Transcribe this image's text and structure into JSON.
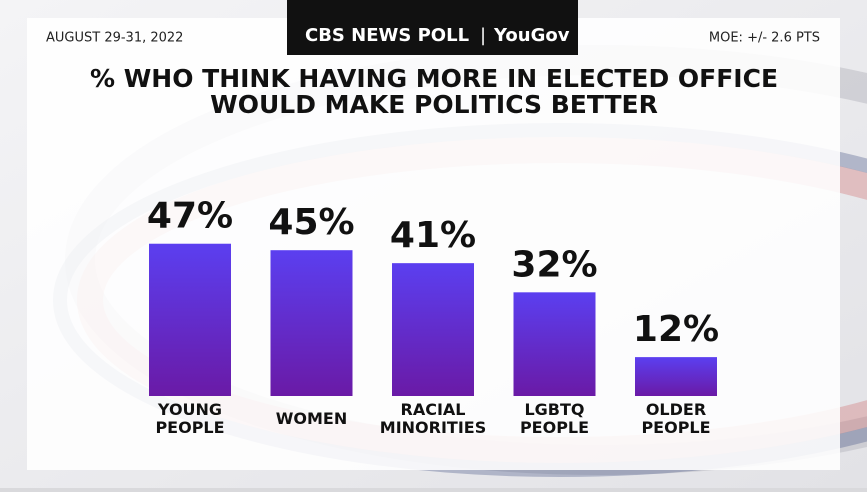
{
  "header": {
    "brand": "CBS NEWS POLL",
    "partner": "YouGov",
    "date": "AUGUST 29-31, 2022",
    "moe": "MOE: +/- 2.6 PTS"
  },
  "chart_data": {
    "type": "bar",
    "title": [
      "% WHO THINK HAVING MORE IN ELECTED OFFICE",
      "WOULD MAKE POLITICS BETTER"
    ],
    "categories": [
      "YOUNG PEOPLE",
      "WOMEN",
      "RACIAL MINORITIES",
      "LGBTQ PEOPLE",
      "OLDER PEOPLE"
    ],
    "values": [
      47,
      45,
      41,
      32,
      12
    ],
    "value_labels": [
      "47%",
      "45%",
      "41%",
      "32%",
      "12%"
    ],
    "color": [
      "#5b3ff0",
      "#6a1aa6"
    ]
  }
}
